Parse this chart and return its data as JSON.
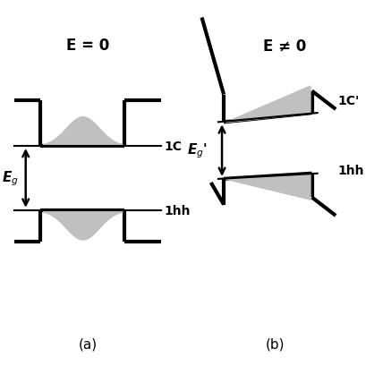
{
  "bg_color": "#ffffff",
  "line_color": "#000000",
  "fill_color": "#c0c0c0",
  "lw": 3.0,
  "label_a": "(a)",
  "label_b": "(b)",
  "text_E0": "E = 0",
  "text_Ene0": "E ≠ 0",
  "text_Eg": "E$_g$",
  "text_Egp": "E$_g$'",
  "text_1C": "1C",
  "text_1Cp": "1C'",
  "text_1hh": "1hh"
}
